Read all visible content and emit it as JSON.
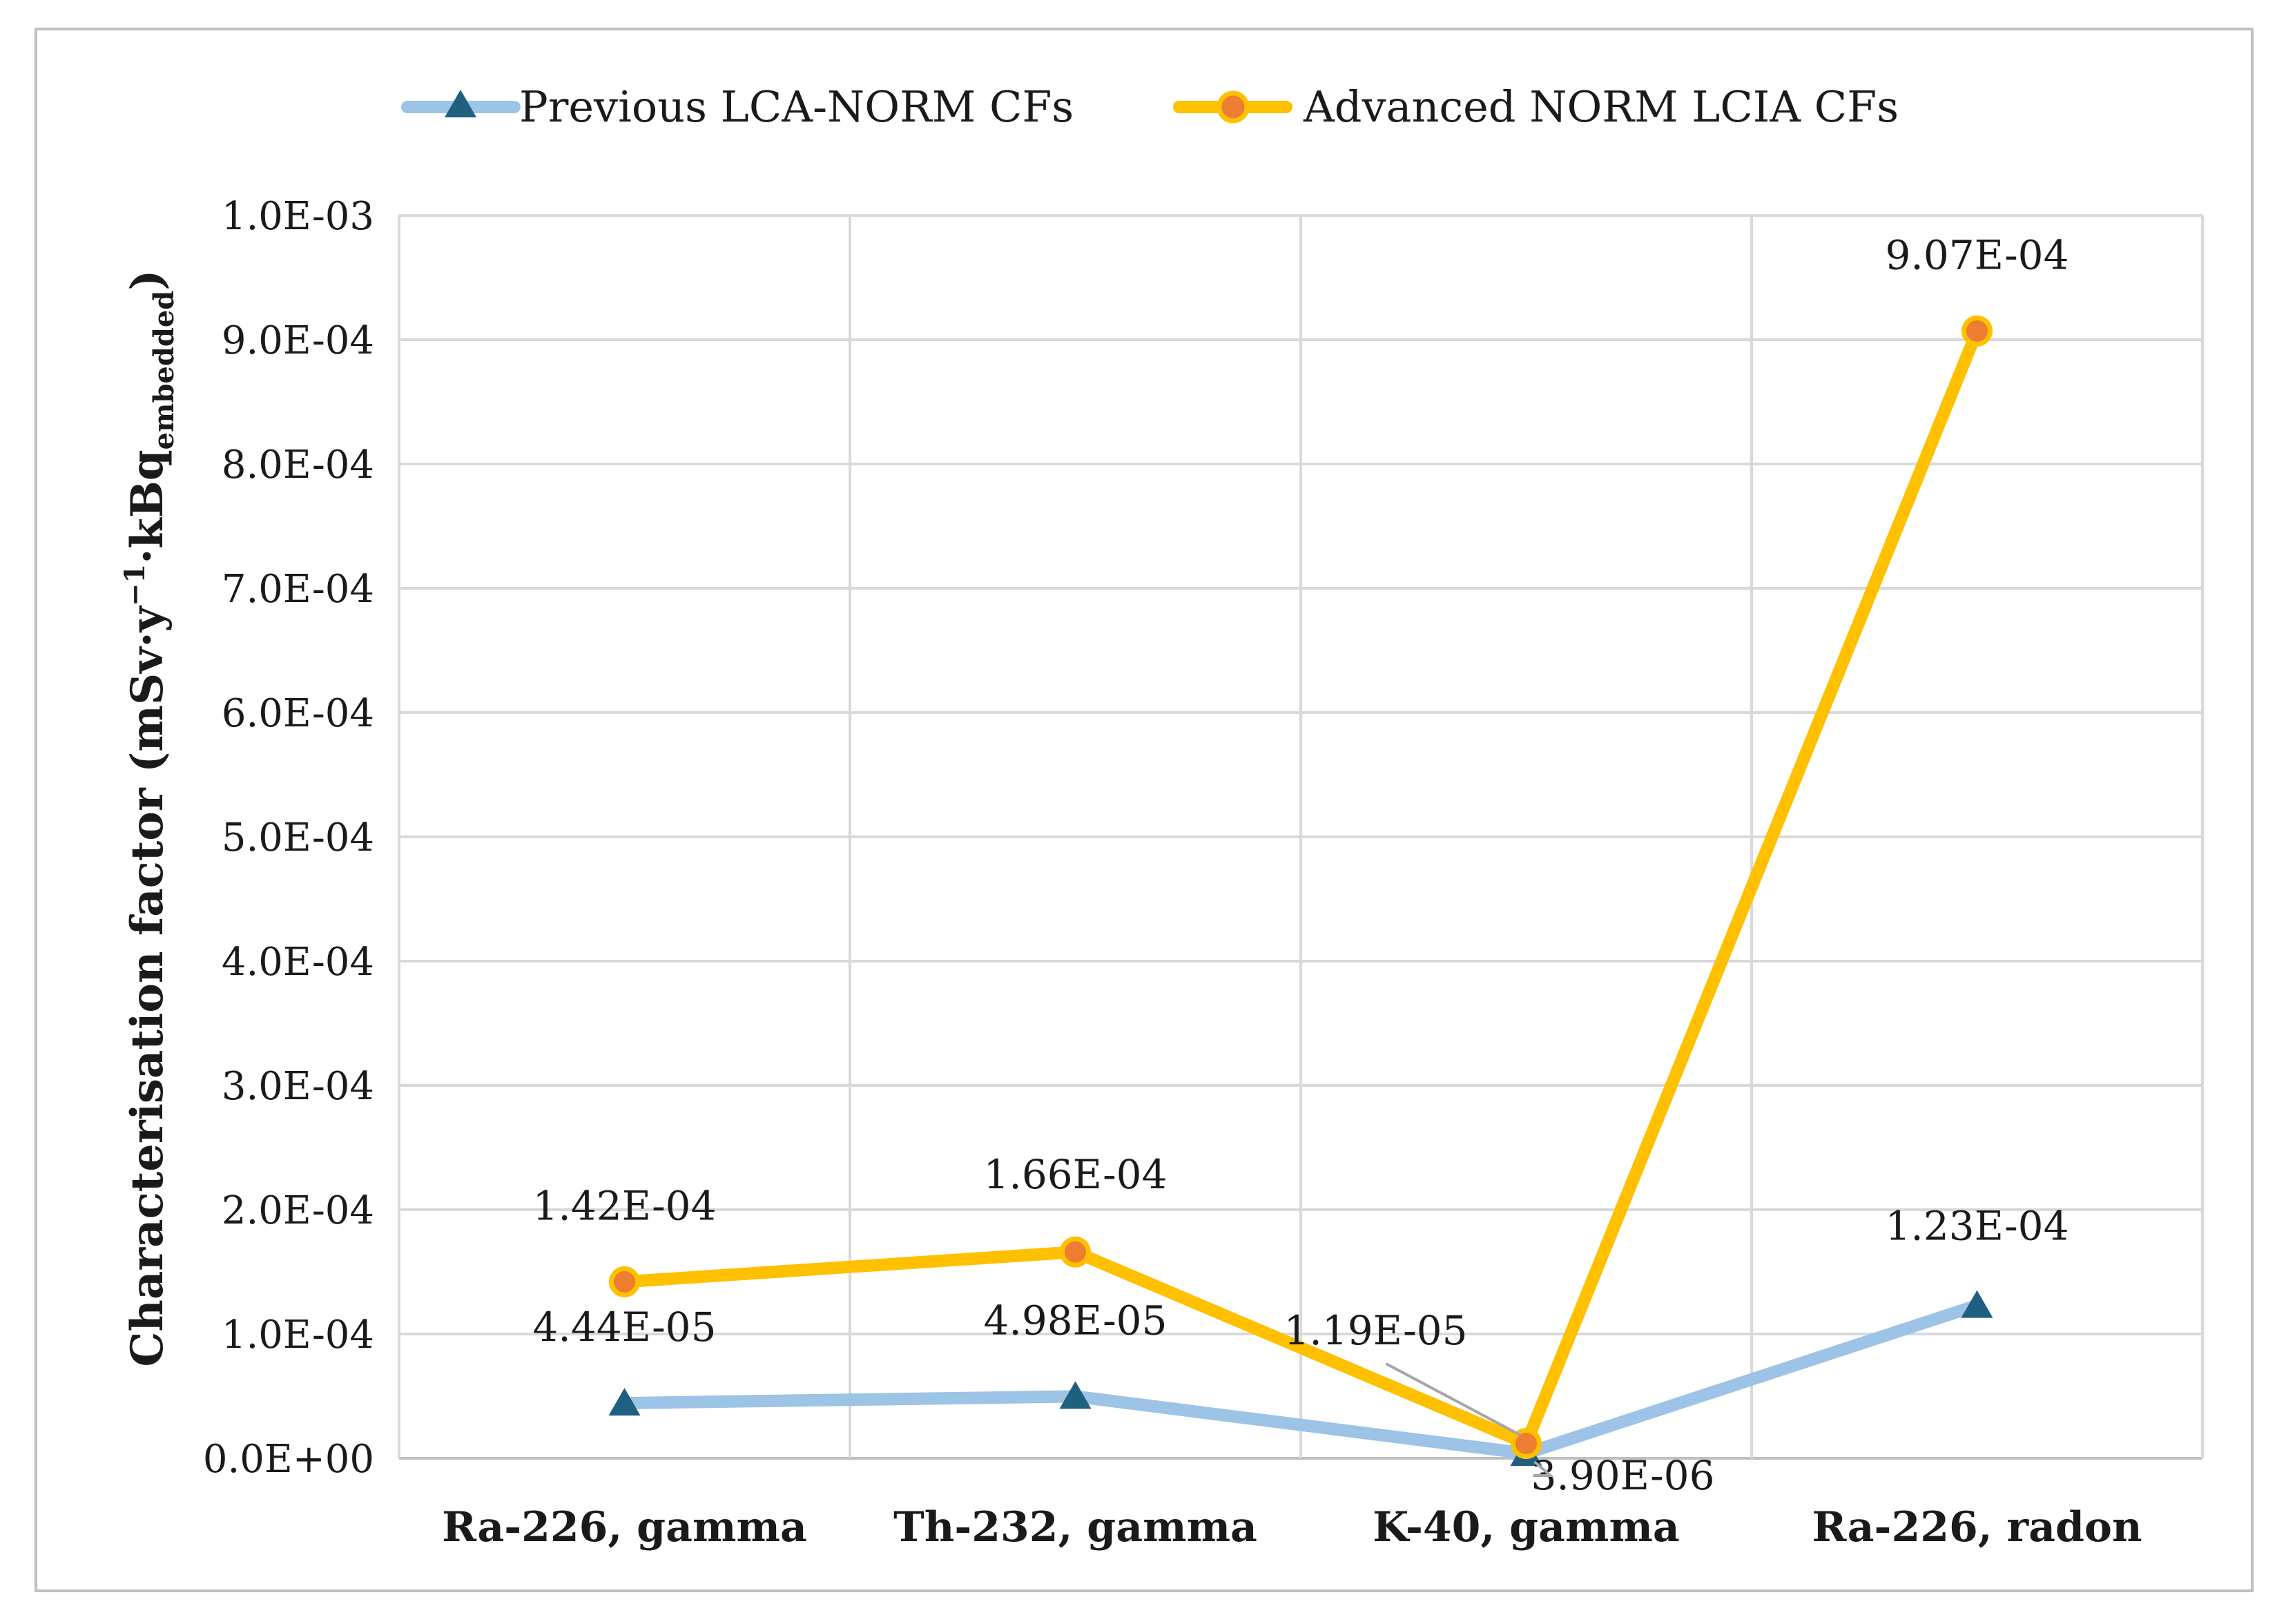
{
  "chart_data": {
    "type": "line",
    "title": "",
    "xlabel": "",
    "ylabel": {
      "main": "Characterisation factor (mSv·y",
      "sup": "−1",
      "mid": "·kBq",
      "sub": "embedded",
      "end": ")"
    },
    "categories": [
      "Ra-226, gamma",
      "Th-232, gamma",
      "K-40, gamma",
      "Ra-226, radon"
    ],
    "ylim": [
      0,
      0.001
    ],
    "yticks": [
      {
        "value": 0,
        "label": "0.0E+00"
      },
      {
        "value": 0.0001,
        "label": "1.0E-04"
      },
      {
        "value": 0.0002,
        "label": "2.0E-04"
      },
      {
        "value": 0.0003,
        "label": "3.0E-04"
      },
      {
        "value": 0.0004,
        "label": "4.0E-04"
      },
      {
        "value": 0.0005,
        "label": "5.0E-04"
      },
      {
        "value": 0.0006,
        "label": "6.0E-04"
      },
      {
        "value": 0.0007,
        "label": "7.0E-04"
      },
      {
        "value": 0.0008,
        "label": "8.0E-04"
      },
      {
        "value": 0.0009,
        "label": "9.0E-04"
      },
      {
        "value": 0.001,
        "label": "1.0E-03"
      }
    ],
    "grid": true,
    "legend_position": "top",
    "series": [
      {
        "name": "Previous LCA-NORM CFs",
        "color": "#9dc3e6",
        "marker_color": "#1f5f80",
        "marker": "triangle",
        "values": [
          4.44e-05,
          4.98e-05,
          3.9e-06,
          0.000123
        ],
        "labels": [
          "4.44E-05",
          "4.98E-05",
          "3.90E-06",
          "1.23E-04"
        ]
      },
      {
        "name": "Advanced NORM LCIA CFs",
        "color": "#ffc000",
        "marker_color": "#ed7d31",
        "marker": "circle",
        "values": [
          0.000142,
          0.000166,
          1.19e-05,
          0.000907
        ],
        "labels": [
          "1.42E-04",
          "1.66E-04",
          "1.19E-05",
          "9.07E-04"
        ]
      }
    ]
  }
}
